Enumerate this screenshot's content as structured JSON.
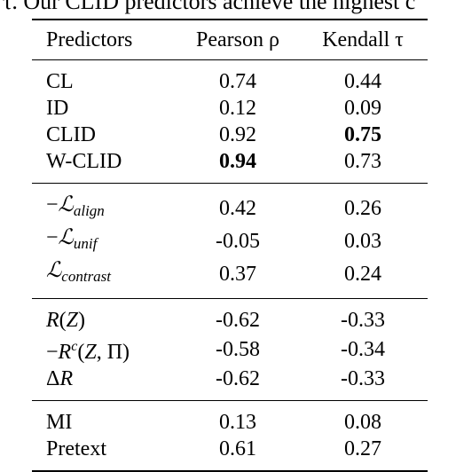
{
  "caption_fragment": "ll τ. Our CLID predictors achieve the highest c",
  "table": {
    "headers": [
      "Predictors",
      "Pearson ρ",
      "Kendall τ"
    ],
    "groups": [
      [
        {
          "name": "CL",
          "pearson": "0.74",
          "kendall": "0.44"
        },
        {
          "name": "ID",
          "pearson": "0.12",
          "kendall": "0.09"
        },
        {
          "name": "CLID",
          "pearson": "0.92",
          "kendall": "0.75",
          "bold": "kendall"
        },
        {
          "name": "W-CLID",
          "pearson": "0.94",
          "kendall": "0.73",
          "bold": "pearson"
        }
      ],
      [
        {
          "name": "−ℒalign",
          "pearson": "0.42",
          "kendall": "0.26"
        },
        {
          "name": "−ℒunif",
          "pearson": "-0.05",
          "kendall": "0.03"
        },
        {
          "name": "ℒcontrast",
          "pearson": "0.37",
          "kendall": "0.24"
        }
      ],
      [
        {
          "name": "R(Z)",
          "pearson": "-0.62",
          "kendall": "-0.33"
        },
        {
          "name": "−Rᶜ(Z, Π)",
          "pearson": "-0.58",
          "kendall": "-0.34"
        },
        {
          "name": "ΔR",
          "pearson": "-0.62",
          "kendall": "-0.33"
        }
      ],
      [
        {
          "name": "MI",
          "pearson": "0.13",
          "kendall": "0.08"
        },
        {
          "name": "Pretext",
          "pearson": "0.61",
          "kendall": "0.27"
        }
      ]
    ]
  }
}
